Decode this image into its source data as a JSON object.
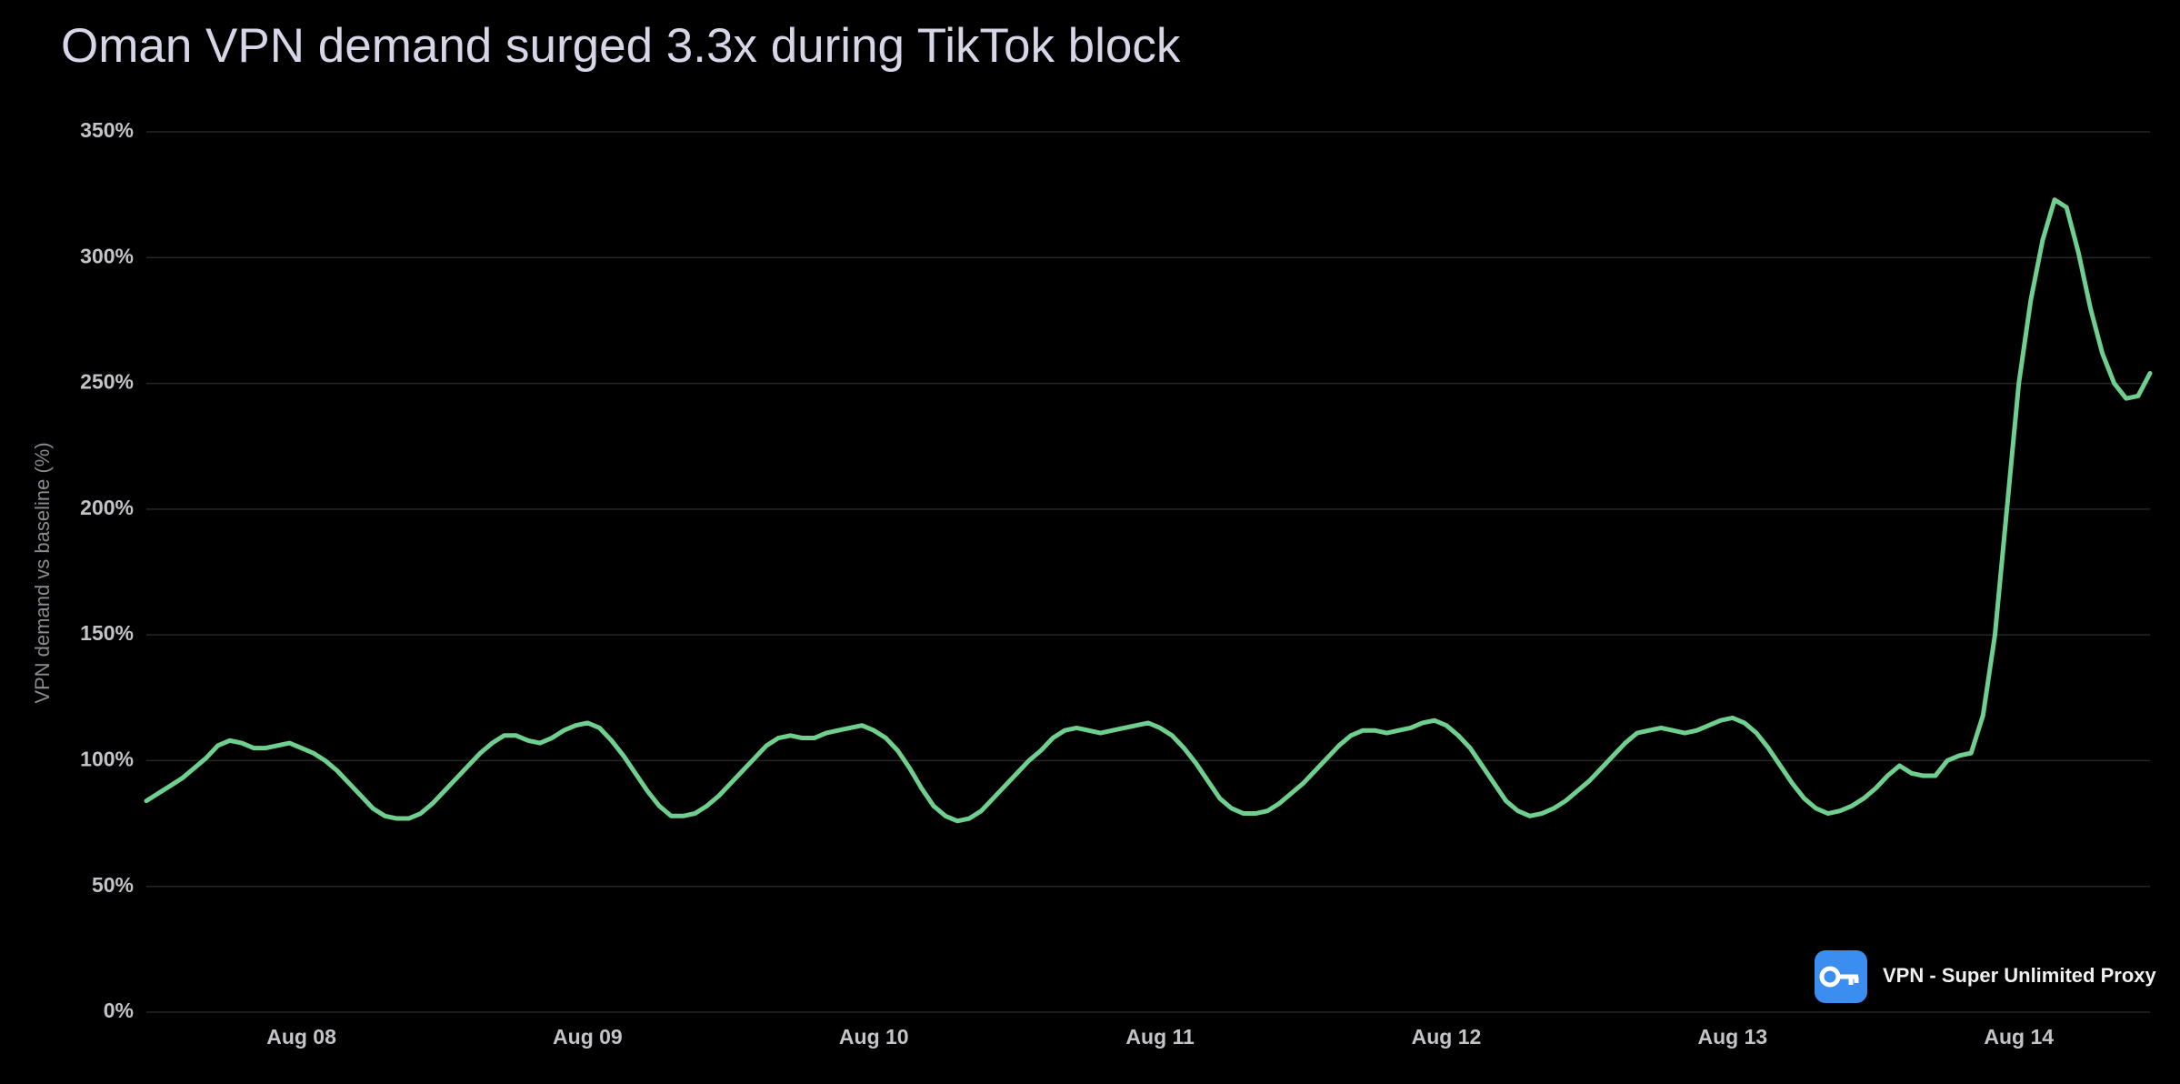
{
  "chart_data": {
    "type": "line",
    "title": "Oman VPN demand surged 3.3x during TikTok block",
    "ylabel": "VPN demand vs baseline (%)",
    "watermark": "VPN - Super Unlimited Proxy",
    "color": "#6fcf8e",
    "grid": true,
    "ylim": [
      0,
      350
    ],
    "yticks": [
      {
        "value": 0,
        "label": "0%"
      },
      {
        "value": 50,
        "label": "50%"
      },
      {
        "value": 100,
        "label": "100%"
      },
      {
        "value": 150,
        "label": "150%"
      },
      {
        "value": 200,
        "label": "200%"
      },
      {
        "value": 250,
        "label": "250%"
      },
      {
        "value": 300,
        "label": "300%"
      },
      {
        "value": 350,
        "label": "350%"
      }
    ],
    "categories": [
      null,
      null,
      null,
      null,
      null,
      null,
      null,
      null,
      null,
      null,
      null,
      null,
      null,
      "Aug 08",
      null,
      null,
      null,
      null,
      null,
      null,
      null,
      null,
      null,
      null,
      null,
      null,
      null,
      null,
      null,
      null,
      null,
      null,
      null,
      null,
      null,
      null,
      null,
      "Aug 09",
      null,
      null,
      null,
      null,
      null,
      null,
      null,
      null,
      null,
      null,
      null,
      null,
      null,
      null,
      null,
      null,
      null,
      null,
      null,
      null,
      null,
      null,
      null,
      "Aug 10",
      null,
      null,
      null,
      null,
      null,
      null,
      null,
      null,
      null,
      null,
      null,
      null,
      null,
      null,
      null,
      null,
      null,
      null,
      null,
      null,
      null,
      null,
      null,
      "Aug 11",
      null,
      null,
      null,
      null,
      null,
      null,
      null,
      null,
      null,
      null,
      null,
      null,
      null,
      null,
      null,
      null,
      null,
      null,
      null,
      null,
      null,
      null,
      null,
      "Aug 12",
      null,
      null,
      null,
      null,
      null,
      null,
      null,
      null,
      null,
      null,
      null,
      null,
      null,
      null,
      null,
      null,
      null,
      null,
      null,
      null,
      null,
      null,
      null,
      "Aug 13",
      null,
      null,
      null,
      null,
      null,
      null,
      null,
      null,
      null,
      null,
      null,
      null,
      null,
      null,
      null,
      null,
      null,
      null,
      null,
      null,
      null,
      null,
      null,
      "Aug 14",
      null,
      null,
      null,
      null,
      null,
      null,
      null,
      null,
      null,
      null,
      null
    ],
    "values": [
      84,
      87,
      90,
      93,
      97,
      101,
      106,
      108,
      107,
      105,
      105,
      106,
      107,
      105,
      103,
      100,
      96,
      91,
      86,
      81,
      78,
      77,
      77,
      79,
      83,
      88,
      93,
      98,
      103,
      107,
      110,
      110,
      108,
      107,
      109,
      112,
      114,
      115,
      113,
      108,
      102,
      95,
      88,
      82,
      78,
      78,
      79,
      82,
      86,
      91,
      96,
      101,
      106,
      109,
      110,
      109,
      109,
      111,
      112,
      113,
      114,
      112,
      109,
      104,
      97,
      89,
      82,
      78,
      76,
      77,
      80,
      85,
      90,
      95,
      100,
      104,
      109,
      112,
      113,
      112,
      111,
      112,
      113,
      114,
      115,
      113,
      110,
      105,
      99,
      92,
      85,
      81,
      79,
      79,
      80,
      83,
      87,
      91,
      96,
      101,
      106,
      110,
      112,
      112,
      111,
      112,
      113,
      115,
      116,
      114,
      110,
      105,
      98,
      91,
      84,
      80,
      78,
      79,
      81,
      84,
      88,
      92,
      97,
      102,
      107,
      111,
      112,
      113,
      112,
      111,
      112,
      114,
      116,
      117,
      115,
      111,
      105,
      98,
      91,
      85,
      81,
      79,
      80,
      82,
      85,
      89,
      94,
      98,
      95,
      94,
      94,
      100,
      102,
      103,
      118,
      150,
      200,
      250,
      283,
      307,
      323,
      320,
      302,
      280,
      262,
      250,
      244,
      245,
      254
    ]
  }
}
